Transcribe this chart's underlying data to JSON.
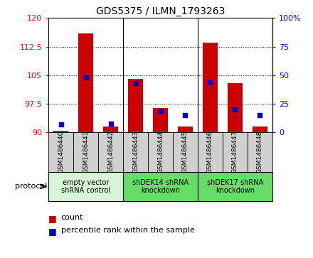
{
  "title": "GDS5375 / ILMN_1793263",
  "samples": [
    "GSM1486440",
    "GSM1486441",
    "GSM1486442",
    "GSM1486443",
    "GSM1486444",
    "GSM1486445",
    "GSM1486446",
    "GSM1486447",
    "GSM1486448"
  ],
  "count_values": [
    90.5,
    116.0,
    91.5,
    104.0,
    96.5,
    91.5,
    113.5,
    103.0,
    91.5
  ],
  "percentile_values": [
    7,
    48,
    8,
    43,
    19,
    15,
    44,
    20,
    15
  ],
  "ymin": 90,
  "ymax": 120,
  "y_ticks": [
    90,
    97.5,
    105,
    112.5,
    120
  ],
  "y2_ticks": [
    0,
    25,
    50,
    75,
    100
  ],
  "protocol_groups": [
    {
      "label": "empty vector\nshRNA control",
      "start": 0,
      "end": 3,
      "color": "#d8f5d8"
    },
    {
      "label": "shDEK14 shRNA\nknockdown",
      "start": 3,
      "end": 6,
      "color": "#66dd66"
    },
    {
      "label": "shDEK17 shRNA\nknockdown",
      "start": 6,
      "end": 9,
      "color": "#66dd66"
    }
  ],
  "bar_color": "#cc0000",
  "dot_color": "#0000cc",
  "bar_width": 0.6,
  "dot_size": 25,
  "sample_box_color": "#d0d0d0",
  "group_dividers": [
    3,
    6
  ],
  "legend_items": [
    {
      "color": "#cc0000",
      "label": "count"
    },
    {
      "color": "#0000cc",
      "label": "percentile rank within the sample"
    }
  ]
}
